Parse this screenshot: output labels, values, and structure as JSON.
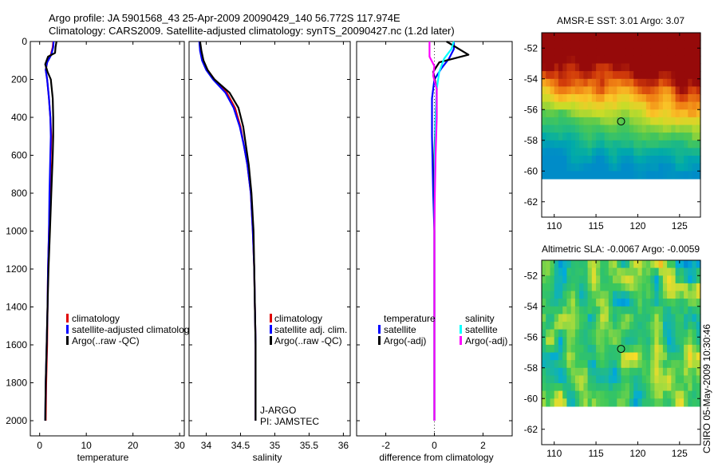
{
  "header": {
    "line1": "Argo profile: JA 5901568_43 25-Apr-2009 20090429_140 56.772S 117.974E",
    "line2": "Climatology: CARS2009. Satellite-adjusted climatology: synTS_20090427.nc (1.2d later)"
  },
  "footer_stamp": "CSIRO 05-May-2009 10:30:46",
  "colors": {
    "climatology": "#e00000",
    "satellite": "#0000ff",
    "argo": "#000000",
    "salinity_sat": "#00ffff",
    "salinity_argo": "#ff00ff"
  },
  "chart_data": [
    {
      "type": "line",
      "title": "",
      "xlabel": "temperature",
      "xlim": [
        -2,
        31
      ],
      "ylim": [
        0,
        2080
      ],
      "yticks": [
        0,
        200,
        400,
        600,
        800,
        1000,
        1200,
        1400,
        1600,
        1800,
        2000
      ],
      "xticks": [
        0,
        10,
        20,
        30
      ],
      "xtick_labels": [
        "0",
        "10",
        "20",
        "30"
      ],
      "ytick_labels": [
        "0",
        "200",
        "400",
        "600",
        "800",
        "1000",
        "1200",
        "1400",
        "1600",
        "1800",
        "2000"
      ],
      "legend": {
        "position": "lower-left",
        "entries": [
          "climatology",
          "satellite-adjusted climatolog",
          "Argo(..raw -QC)"
        ]
      },
      "series": [
        {
          "name": "climatology",
          "color": "#e00000",
          "points": [
            [
              2.9,
              0
            ],
            [
              2.8,
              30
            ],
            [
              2.4,
              70
            ],
            [
              1.6,
              110
            ],
            [
              1.3,
              150
            ],
            [
              1.6,
              200
            ],
            [
              2.0,
              300
            ],
            [
              2.3,
              400
            ],
            [
              2.5,
              500
            ],
            [
              2.4,
              600
            ],
            [
              2.2,
              800
            ],
            [
              2.0,
              1000
            ],
            [
              1.8,
              1200
            ],
            [
              1.7,
              1400
            ],
            [
              1.6,
              1600
            ],
            [
              1.4,
              1800
            ],
            [
              1.3,
              2000
            ]
          ]
        },
        {
          "name": "satellite-adjusted climatology",
          "color": "#0000ff",
          "points": [
            [
              3.0,
              0
            ],
            [
              2.9,
              30
            ],
            [
              2.5,
              70
            ],
            [
              1.6,
              110
            ],
            [
              1.3,
              150
            ],
            [
              1.6,
              200
            ],
            [
              2.0,
              300
            ],
            [
              2.3,
              400
            ],
            [
              2.4,
              500
            ],
            [
              2.3,
              600
            ],
            [
              2.1,
              800
            ],
            [
              2.0,
              1000
            ],
            [
              1.8,
              1200
            ],
            [
              1.7,
              1400
            ],
            [
              1.5,
              1600
            ],
            [
              1.3,
              1800
            ],
            [
              1.2,
              2000
            ]
          ]
        },
        {
          "name": "Argo(..raw -QC)",
          "color": "#000000",
          "points": [
            [
              3.6,
              0
            ],
            [
              3.4,
              30
            ],
            [
              3.3,
              60
            ],
            [
              1.8,
              80
            ],
            [
              1.2,
              120
            ],
            [
              1.7,
              160
            ],
            [
              2.4,
              200
            ],
            [
              2.8,
              300
            ],
            [
              2.9,
              400
            ],
            [
              2.9,
              500
            ],
            [
              2.8,
              600
            ],
            [
              2.5,
              800
            ],
            [
              2.2,
              1000
            ],
            [
              1.9,
              1200
            ],
            [
              1.7,
              1400
            ],
            [
              1.5,
              1600
            ],
            [
              1.3,
              1800
            ],
            [
              1.2,
              2000
            ]
          ]
        }
      ]
    },
    {
      "type": "line",
      "title": "",
      "xlabel": "salinity",
      "xlim": [
        33.75,
        36.1
      ],
      "ylim": [
        0,
        2080
      ],
      "xticks": [
        34,
        34.5,
        35,
        35.5,
        36
      ],
      "xtick_labels": [
        "34",
        "34.5",
        "35",
        "35.5",
        "36"
      ],
      "legend": {
        "position": "lower-right",
        "entries": [
          "climatology",
          "satellite adj. clim.",
          "Argo(..raw -QC)"
        ]
      },
      "annotations": [
        "J-ARGO",
        "PI: JAMSTEC"
      ],
      "series": [
        {
          "name": "climatology",
          "color": "#e00000",
          "points": [
            [
              33.9,
              0
            ],
            [
              33.92,
              50
            ],
            [
              33.95,
              100
            ],
            [
              34.02,
              150
            ],
            [
              34.12,
              200
            ],
            [
              34.3,
              270
            ],
            [
              34.42,
              350
            ],
            [
              34.5,
              450
            ],
            [
              34.55,
              550
            ],
            [
              34.6,
              650
            ],
            [
              34.65,
              800
            ],
            [
              34.68,
              1000
            ],
            [
              34.7,
              1200
            ],
            [
              34.71,
              1400
            ],
            [
              34.72,
              1600
            ],
            [
              34.72,
              1800
            ],
            [
              34.72,
              2000
            ]
          ]
        },
        {
          "name": "satellite adj. clim.",
          "color": "#0000ff",
          "points": [
            [
              33.9,
              0
            ],
            [
              33.91,
              50
            ],
            [
              33.94,
              100
            ],
            [
              34.0,
              150
            ],
            [
              34.1,
              200
            ],
            [
              34.28,
              270
            ],
            [
              34.4,
              350
            ],
            [
              34.49,
              450
            ],
            [
              34.55,
              550
            ],
            [
              34.6,
              650
            ],
            [
              34.65,
              800
            ],
            [
              34.68,
              1000
            ],
            [
              34.7,
              1200
            ],
            [
              34.71,
              1400
            ],
            [
              34.72,
              1600
            ],
            [
              34.72,
              1800
            ],
            [
              34.72,
              2000
            ]
          ]
        },
        {
          "name": "Argo(..raw -QC)",
          "color": "#000000",
          "points": [
            [
              33.91,
              0
            ],
            [
              33.93,
              50
            ],
            [
              33.96,
              100
            ],
            [
              34.02,
              150
            ],
            [
              34.12,
              200
            ],
            [
              34.34,
              270
            ],
            [
              34.47,
              350
            ],
            [
              34.54,
              450
            ],
            [
              34.58,
              550
            ],
            [
              34.62,
              650
            ],
            [
              34.66,
              800
            ],
            [
              34.69,
              1000
            ],
            [
              34.7,
              1200
            ],
            [
              34.71,
              1400
            ],
            [
              34.72,
              1600
            ],
            [
              34.72,
              1800
            ],
            [
              34.72,
              2000
            ]
          ]
        }
      ]
    },
    {
      "type": "line",
      "title": "",
      "xlabel": "difference from climatology",
      "xlim": [
        -3.2,
        3.2
      ],
      "ylim": [
        0,
        2080
      ],
      "xticks": [
        -2,
        0,
        2
      ],
      "xtick_labels": [
        "-2",
        "0",
        "2"
      ],
      "legend": {
        "position": "lower",
        "groups": [
          {
            "heading": "temperature",
            "entries": [
              "satellite",
              "Argo(-adj)"
            ]
          },
          {
            "heading": "salinity",
            "entries": [
              "satellite",
              "Argo(-adj)"
            ]
          }
        ]
      },
      "series": [
        {
          "name": "temperature satellite",
          "color": "#0000ff",
          "points": [
            [
              0.8,
              0
            ],
            [
              0.8,
              40
            ],
            [
              0.6,
              90
            ],
            [
              0.3,
              140
            ],
            [
              0.0,
              200
            ],
            [
              -0.1,
              300
            ],
            [
              -0.1,
              500
            ],
            [
              -0.05,
              800
            ],
            [
              0,
              1000
            ],
            [
              0,
              1500
            ],
            [
              0,
              2000
            ]
          ]
        },
        {
          "name": "temperature Argo(-adj)",
          "color": "#000000",
          "points": [
            [
              0.5,
              0
            ],
            [
              1.4,
              70
            ],
            [
              0.2,
              110
            ],
            [
              -0.05,
              160
            ],
            [
              0.1,
              250
            ],
            [
              0.05,
              400
            ],
            [
              0,
              600
            ],
            [
              0,
              1000
            ],
            [
              0,
              2000
            ]
          ]
        },
        {
          "name": "salinity satellite",
          "color": "#00ffff",
          "points": [
            [
              0.8,
              0
            ],
            [
              0.7,
              40
            ],
            [
              0.4,
              90
            ],
            [
              0.2,
              160
            ],
            [
              0.1,
              250
            ],
            [
              0.05,
              400
            ],
            [
              0.02,
              600
            ],
            [
              0,
              1000
            ],
            [
              0,
              2000
            ]
          ]
        },
        {
          "name": "salinity Argo(-adj)",
          "color": "#ff00ff",
          "points": [
            [
              -0.2,
              0
            ],
            [
              -0.2,
              80
            ],
            [
              0.0,
              130
            ],
            [
              -0.05,
              180
            ],
            [
              0.1,
              250
            ],
            [
              0.1,
              400
            ],
            [
              0.05,
              600
            ],
            [
              0.02,
              800
            ],
            [
              0,
              1000
            ],
            [
              0,
              2000
            ]
          ]
        }
      ]
    },
    {
      "type": "heatmap",
      "title": "AMSR-E SST: 3.01 Argo: 3.07",
      "xlim": [
        108.5,
        127.5
      ],
      "ylim": [
        -63,
        -51
      ],
      "xticks": [
        110,
        115,
        120,
        125
      ],
      "xtick_labels": [
        "110",
        "115",
        "120",
        "125"
      ],
      "yticks": [
        -52,
        -54,
        -56,
        -58,
        -60,
        -62
      ],
      "ytick_labels": [
        "-52",
        "-54",
        "-56",
        "-58",
        "-60",
        "-62"
      ],
      "data_extent_lat": [
        -60.1,
        -51
      ],
      "marker": {
        "lon": 118,
        "lat": -56.77
      },
      "value_range": [
        -1,
        7
      ]
    },
    {
      "type": "heatmap",
      "title": "Altimetric SLA: -0.0067 Argo: -0.0059",
      "xlim": [
        108.5,
        127.5
      ],
      "ylim": [
        -63,
        -51
      ],
      "xticks": [
        110,
        115,
        120,
        125
      ],
      "xtick_labels": [
        "110",
        "115",
        "120",
        "125"
      ],
      "yticks": [
        -52,
        -54,
        -56,
        -58,
        -60,
        -62
      ],
      "ytick_labels": [
        "-52",
        "-54",
        "-56",
        "-58",
        "-60",
        "-62"
      ],
      "data_extent_lat": [
        -60.1,
        -51
      ],
      "marker": {
        "lon": 118,
        "lat": -56.77
      },
      "value_range": [
        -0.3,
        0.3
      ]
    }
  ]
}
